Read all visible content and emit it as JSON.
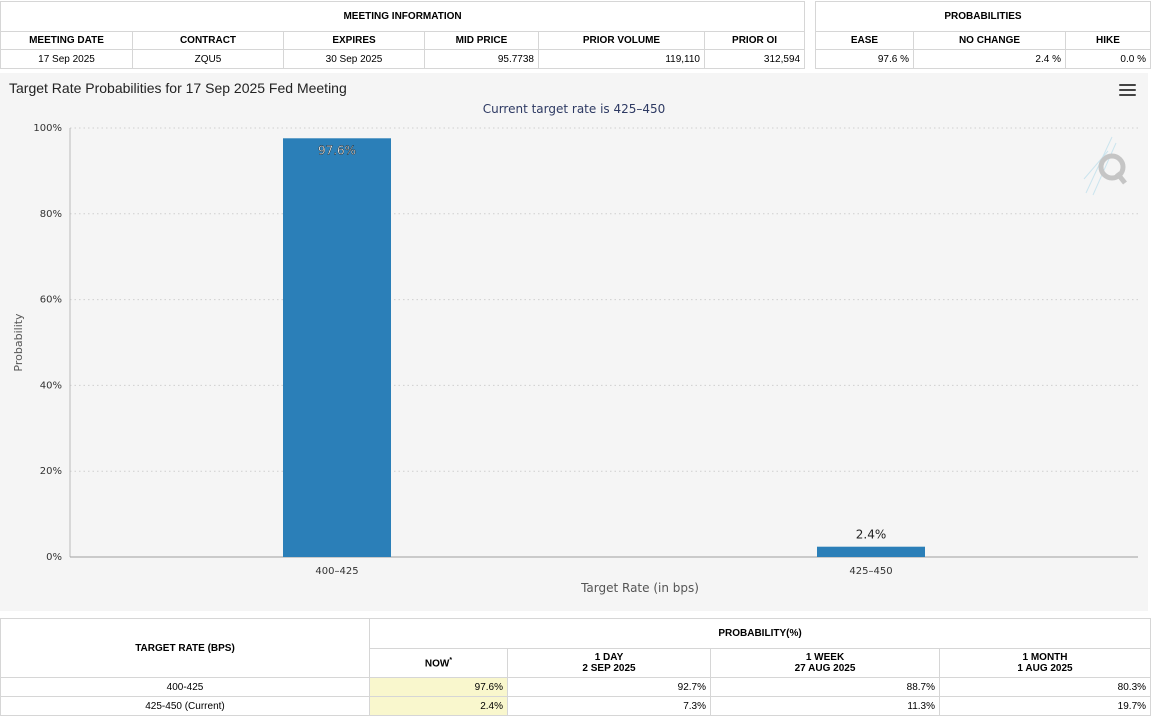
{
  "meeting_info": {
    "group_label": "MEETING INFORMATION",
    "headers": [
      "MEETING DATE",
      "CONTRACT",
      "EXPIRES",
      "MID PRICE",
      "PRIOR VOLUME",
      "PRIOR OI"
    ],
    "row": [
      "17 Sep 2025",
      "ZQU5",
      "30 Sep 2025",
      "95.7738",
      "119,110",
      "312,594"
    ]
  },
  "probabilities": {
    "group_label": "PROBABILITIES",
    "headers": [
      "EASE",
      "NO CHANGE",
      "HIKE"
    ],
    "row": [
      "97.6 %",
      "2.4 %",
      "0.0 %"
    ]
  },
  "chart_data": {
    "type": "bar",
    "title": "Target Rate Probabilities for 17 Sep 2025 Fed Meeting",
    "subtitle": "Current target rate is 425–450",
    "xlabel": "Target Rate (in bps)",
    "ylabel": "Probability",
    "categories": [
      "400–425",
      "425–450"
    ],
    "values": [
      97.6,
      2.4
    ],
    "data_labels": [
      "97.6%",
      "2.4%"
    ],
    "ylim": [
      0,
      100
    ],
    "yticks": [
      0,
      20,
      40,
      60,
      80,
      100
    ],
    "ytick_labels": [
      "0%",
      "20%",
      "40%",
      "60%",
      "80%",
      "100%"
    ],
    "bar_color": "#2b7fb8",
    "grid": true,
    "legend": "none"
  },
  "rate_table": {
    "col_header": "TARGET RATE (BPS)",
    "group_header": "PROBABILITY(%)",
    "subheaders": [
      {
        "line1": "NOW",
        "line2": ""
      },
      {
        "line1": "1 DAY",
        "line2": "2 SEP 2025"
      },
      {
        "line1": "1 WEEK",
        "line2": "27 AUG 2025"
      },
      {
        "line1": "1 MONTH",
        "line2": "1 AUG 2025"
      }
    ],
    "now_marker": "*",
    "rows": [
      {
        "rate": "400-425",
        "values": [
          "97.6%",
          "92.7%",
          "88.7%",
          "80.3%"
        ]
      },
      {
        "rate": "425-450 (Current)",
        "values": [
          "2.4%",
          "7.3%",
          "11.3%",
          "19.7%"
        ]
      }
    ]
  }
}
